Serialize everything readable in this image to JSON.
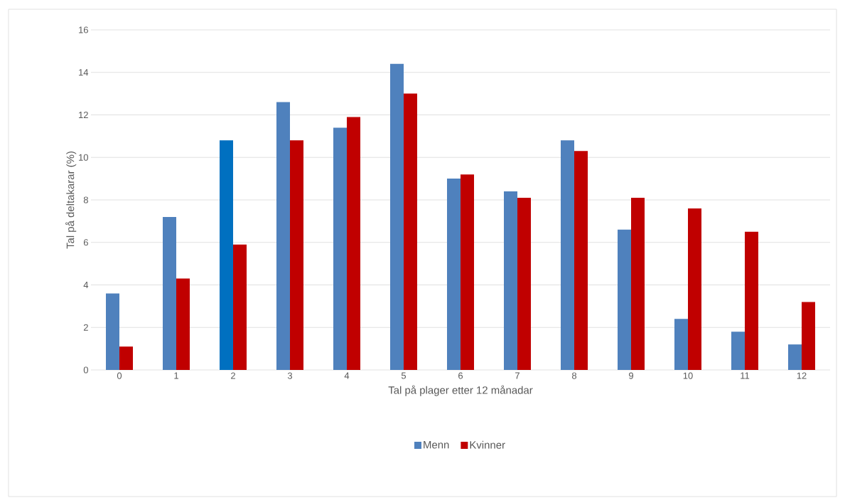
{
  "chart_data": {
    "type": "bar",
    "xlabel": "Tal på plager etter 12 månadar",
    "ylabel": "Tal på deltakarar (%)",
    "categories": [
      "0",
      "1",
      "2",
      "3",
      "4",
      "5",
      "6",
      "7",
      "8",
      "9",
      "10",
      "11",
      "12"
    ],
    "series": [
      {
        "name": "Menn",
        "color": "#4f81bd",
        "colors": [
          "#4f81bd",
          "#4f81bd",
          "#0070c0",
          "#4f81bd",
          "#4f81bd",
          "#4f81bd",
          "#4f81bd",
          "#4f81bd",
          "#4f81bd",
          "#4f81bd",
          "#4f81bd",
          "#4f81bd",
          "#4f81bd"
        ],
        "values": [
          3.6,
          7.2,
          10.8,
          12.6,
          11.4,
          14.4,
          9.0,
          8.4,
          10.8,
          6.6,
          2.4,
          1.8,
          1.2
        ]
      },
      {
        "name": "Kvinner",
        "color": "#c00000",
        "values": [
          1.1,
          4.3,
          5.9,
          10.8,
          11.9,
          13.0,
          9.2,
          8.1,
          10.3,
          8.1,
          7.6,
          6.5,
          3.2
        ]
      }
    ],
    "ylim": [
      0,
      16
    ],
    "yticks": [
      0,
      2,
      4,
      6,
      8,
      10,
      12,
      14,
      16
    ],
    "grid": "y",
    "legend": "bottom"
  }
}
